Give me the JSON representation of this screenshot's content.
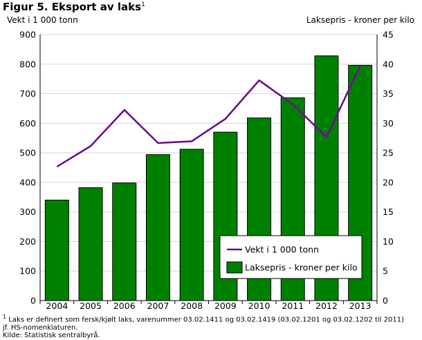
{
  "header": {
    "title": "Figur 5. Eksport av laks",
    "title_sup": "1",
    "unit_left": "Vekt i 1 000 tonn",
    "unit_right": "Laksepris -  kroner per kilo"
  },
  "footnotes": {
    "line1_sup": "1",
    "line1": " Laks er definert som fersk/kjølt laks, varenummer 03.02.1411 og 03.02.1419 (03.02.1201 og 03.02.1202 til 2011)",
    "line2": "jf. HS-nomenklaturen.",
    "line3": "Kilde: Statistisk sentralbyrå."
  },
  "chart_data": {
    "type": "bar",
    "categories": [
      "2004",
      "2005",
      "2006",
      "2007",
      "2008",
      "2009",
      "2010",
      "2011",
      "2012",
      "2013"
    ],
    "series": [
      {
        "name": "Laksepris -  kroner per kilo",
        "type": "bar",
        "axis": "right",
        "color": "#008000",
        "values": [
          17.0,
          19.1,
          19.9,
          24.7,
          25.6,
          28.5,
          30.9,
          34.3,
          41.4,
          39.8
        ]
      },
      {
        "name": "Vekt i 1 000 tonn",
        "type": "line",
        "axis": "left",
        "color": "#6a0f8e",
        "values": [
          453,
          523,
          645,
          533,
          539,
          615,
          745,
          664,
          553,
          795
        ]
      }
    ],
    "y_left": {
      "ticks": [
        "0",
        "100",
        "200",
        "300",
        "400",
        "500",
        "600",
        "700",
        "800",
        "900"
      ],
      "ylim": [
        0,
        900
      ]
    },
    "y_right": {
      "ticks": [
        "0",
        "5",
        "10",
        "15",
        "20",
        "25",
        "30",
        "35",
        "40",
        "45"
      ],
      "ylim": [
        0,
        45
      ]
    },
    "grid": true,
    "legend_position": "bottom-right"
  }
}
